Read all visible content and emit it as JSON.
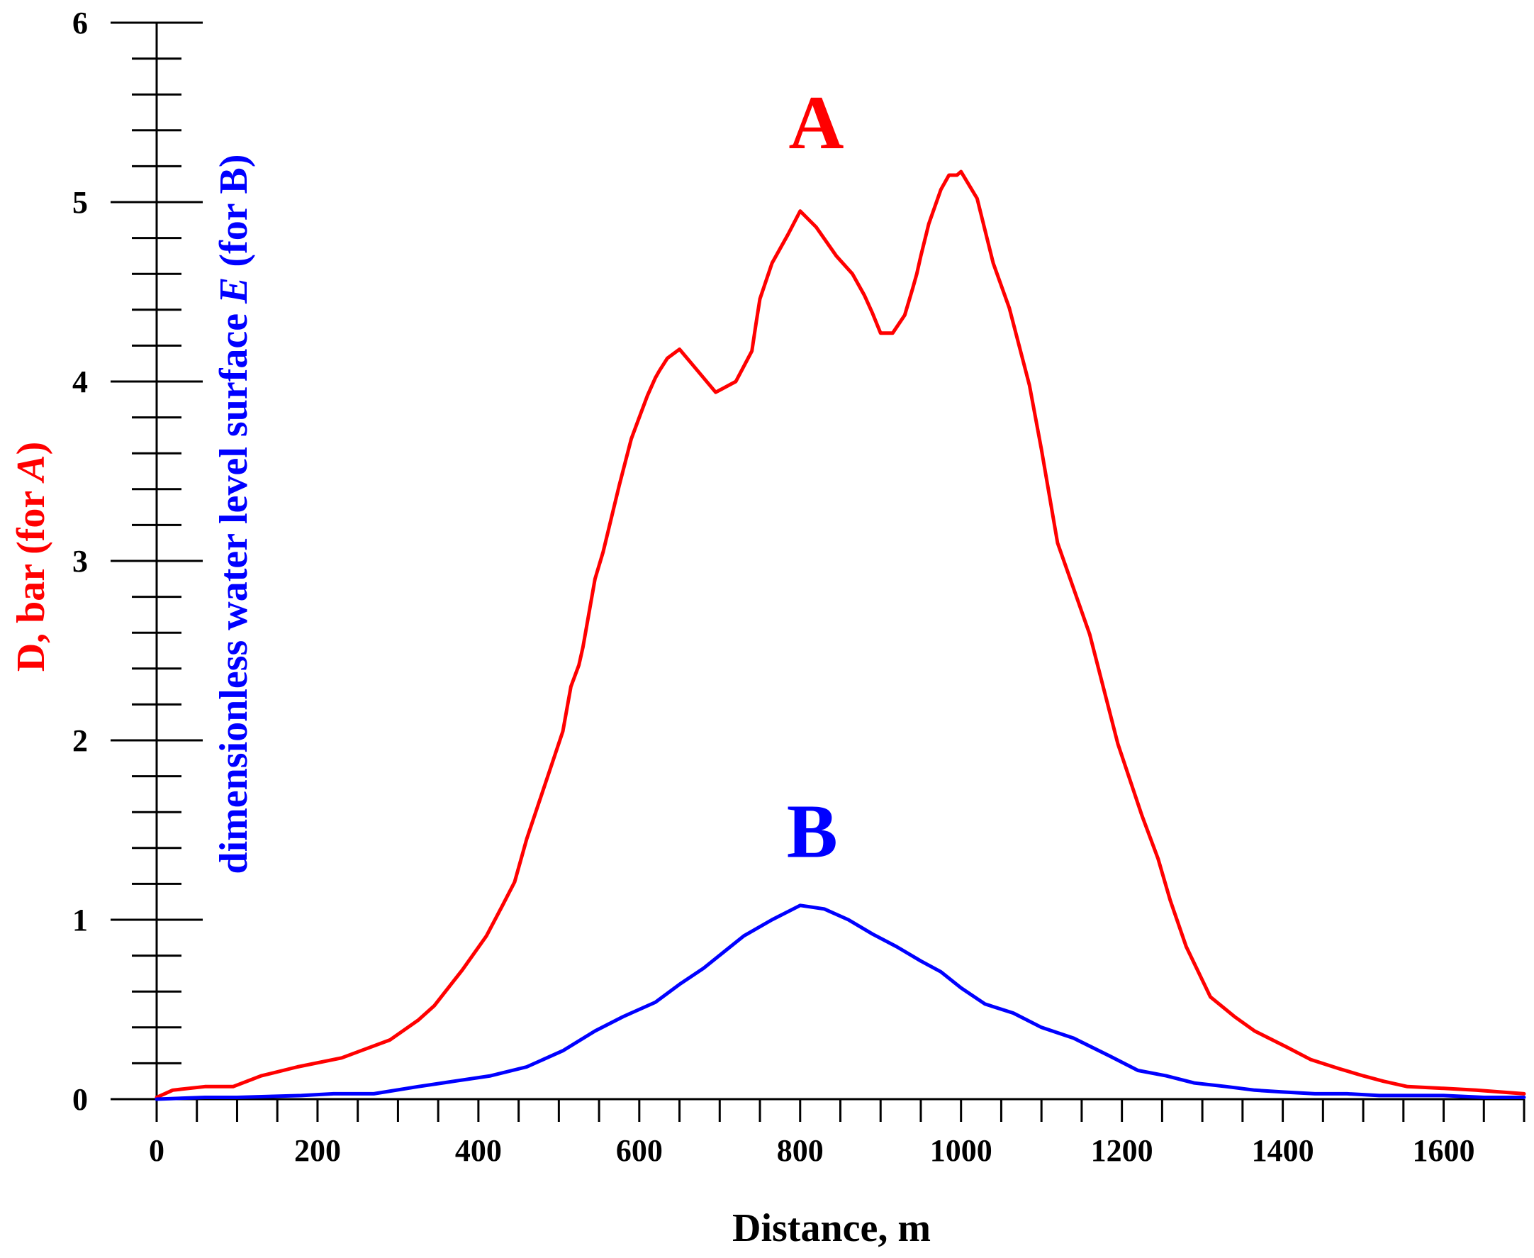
{
  "chart_data": {
    "type": "line",
    "title": "",
    "xlabel": "Distance, m",
    "ylabel_a": {
      "prefix": "D, bar (for ",
      "series": "A",
      "suffix": ")"
    },
    "ylabel_b": {
      "prefix": "dimensionless water level surface ",
      "var": "E",
      "suffix": " (for B)"
    },
    "xlim": [
      0,
      1700
    ],
    "ylim": [
      0,
      6
    ],
    "x_ticks": [
      0,
      200,
      400,
      600,
      800,
      1000,
      1200,
      1400,
      1600
    ],
    "y_ticks": [
      0,
      1,
      2,
      3,
      4,
      5,
      6
    ],
    "series": [
      {
        "name": "A",
        "color": "#ff0000",
        "label_at": [
          820,
          5.3
        ],
        "x": [
          0,
          20,
          60,
          95,
          130,
          175,
          230,
          290,
          325,
          345,
          380,
          410,
          430,
          445,
          460,
          475,
          490,
          505,
          515,
          525,
          530,
          545,
          555,
          575,
          590,
          600,
          610,
          620,
          625,
          635,
          650,
          665,
          695,
          720,
          740,
          745,
          750,
          765,
          785,
          800,
          820,
          845,
          865,
          880,
          890,
          900,
          915,
          930,
          940,
          945,
          950,
          960,
          975,
          985,
          995,
          1000,
          1020,
          1040,
          1060,
          1085,
          1100,
          1120,
          1160,
          1195,
          1225,
          1245,
          1260,
          1280,
          1310,
          1340,
          1365,
          1405,
          1435,
          1470,
          1500,
          1525,
          1555,
          1600,
          1640,
          1700
        ],
        "values": [
          0.01,
          0.05,
          0.07,
          0.07,
          0.13,
          0.18,
          0.23,
          0.33,
          0.44,
          0.52,
          0.72,
          0.91,
          1.08,
          1.21,
          1.45,
          1.65,
          1.85,
          2.05,
          2.3,
          2.42,
          2.52,
          2.9,
          3.05,
          3.42,
          3.68,
          3.8,
          3.92,
          4.02,
          4.06,
          4.13,
          4.18,
          4.1,
          3.94,
          4.0,
          4.17,
          4.32,
          4.46,
          4.66,
          4.82,
          4.95,
          4.86,
          4.7,
          4.6,
          4.48,
          4.38,
          4.27,
          4.27,
          4.37,
          4.52,
          4.6,
          4.7,
          4.88,
          5.07,
          5.15,
          5.15,
          5.17,
          5.02,
          4.66,
          4.41,
          3.98,
          3.62,
          3.1,
          2.59,
          1.98,
          1.58,
          1.34,
          1.11,
          0.85,
          0.57,
          0.46,
          0.38,
          0.29,
          0.22,
          0.17,
          0.13,
          0.1,
          0.07,
          0.06,
          0.05,
          0.03
        ]
      },
      {
        "name": "B",
        "color": "#0000ff",
        "label_at": [
          815,
          1.35
        ],
        "x": [
          0,
          60,
          100,
          180,
          220,
          270,
          325,
          370,
          415,
          460,
          505,
          545,
          580,
          620,
          650,
          680,
          705,
          730,
          765,
          800,
          830,
          860,
          890,
          920,
          950,
          975,
          1000,
          1030,
          1065,
          1100,
          1140,
          1185,
          1220,
          1255,
          1290,
          1330,
          1365,
          1400,
          1440,
          1480,
          1520,
          1560,
          1600,
          1650,
          1700
        ],
        "values": [
          0.0,
          0.01,
          0.01,
          0.02,
          0.03,
          0.03,
          0.07,
          0.1,
          0.13,
          0.18,
          0.27,
          0.38,
          0.46,
          0.54,
          0.64,
          0.73,
          0.82,
          0.91,
          1.0,
          1.08,
          1.06,
          1.0,
          0.92,
          0.85,
          0.77,
          0.71,
          0.62,
          0.53,
          0.48,
          0.4,
          0.34,
          0.24,
          0.16,
          0.13,
          0.09,
          0.07,
          0.05,
          0.04,
          0.03,
          0.03,
          0.02,
          0.02,
          0.02,
          0.01,
          0.01
        ]
      }
    ]
  }
}
